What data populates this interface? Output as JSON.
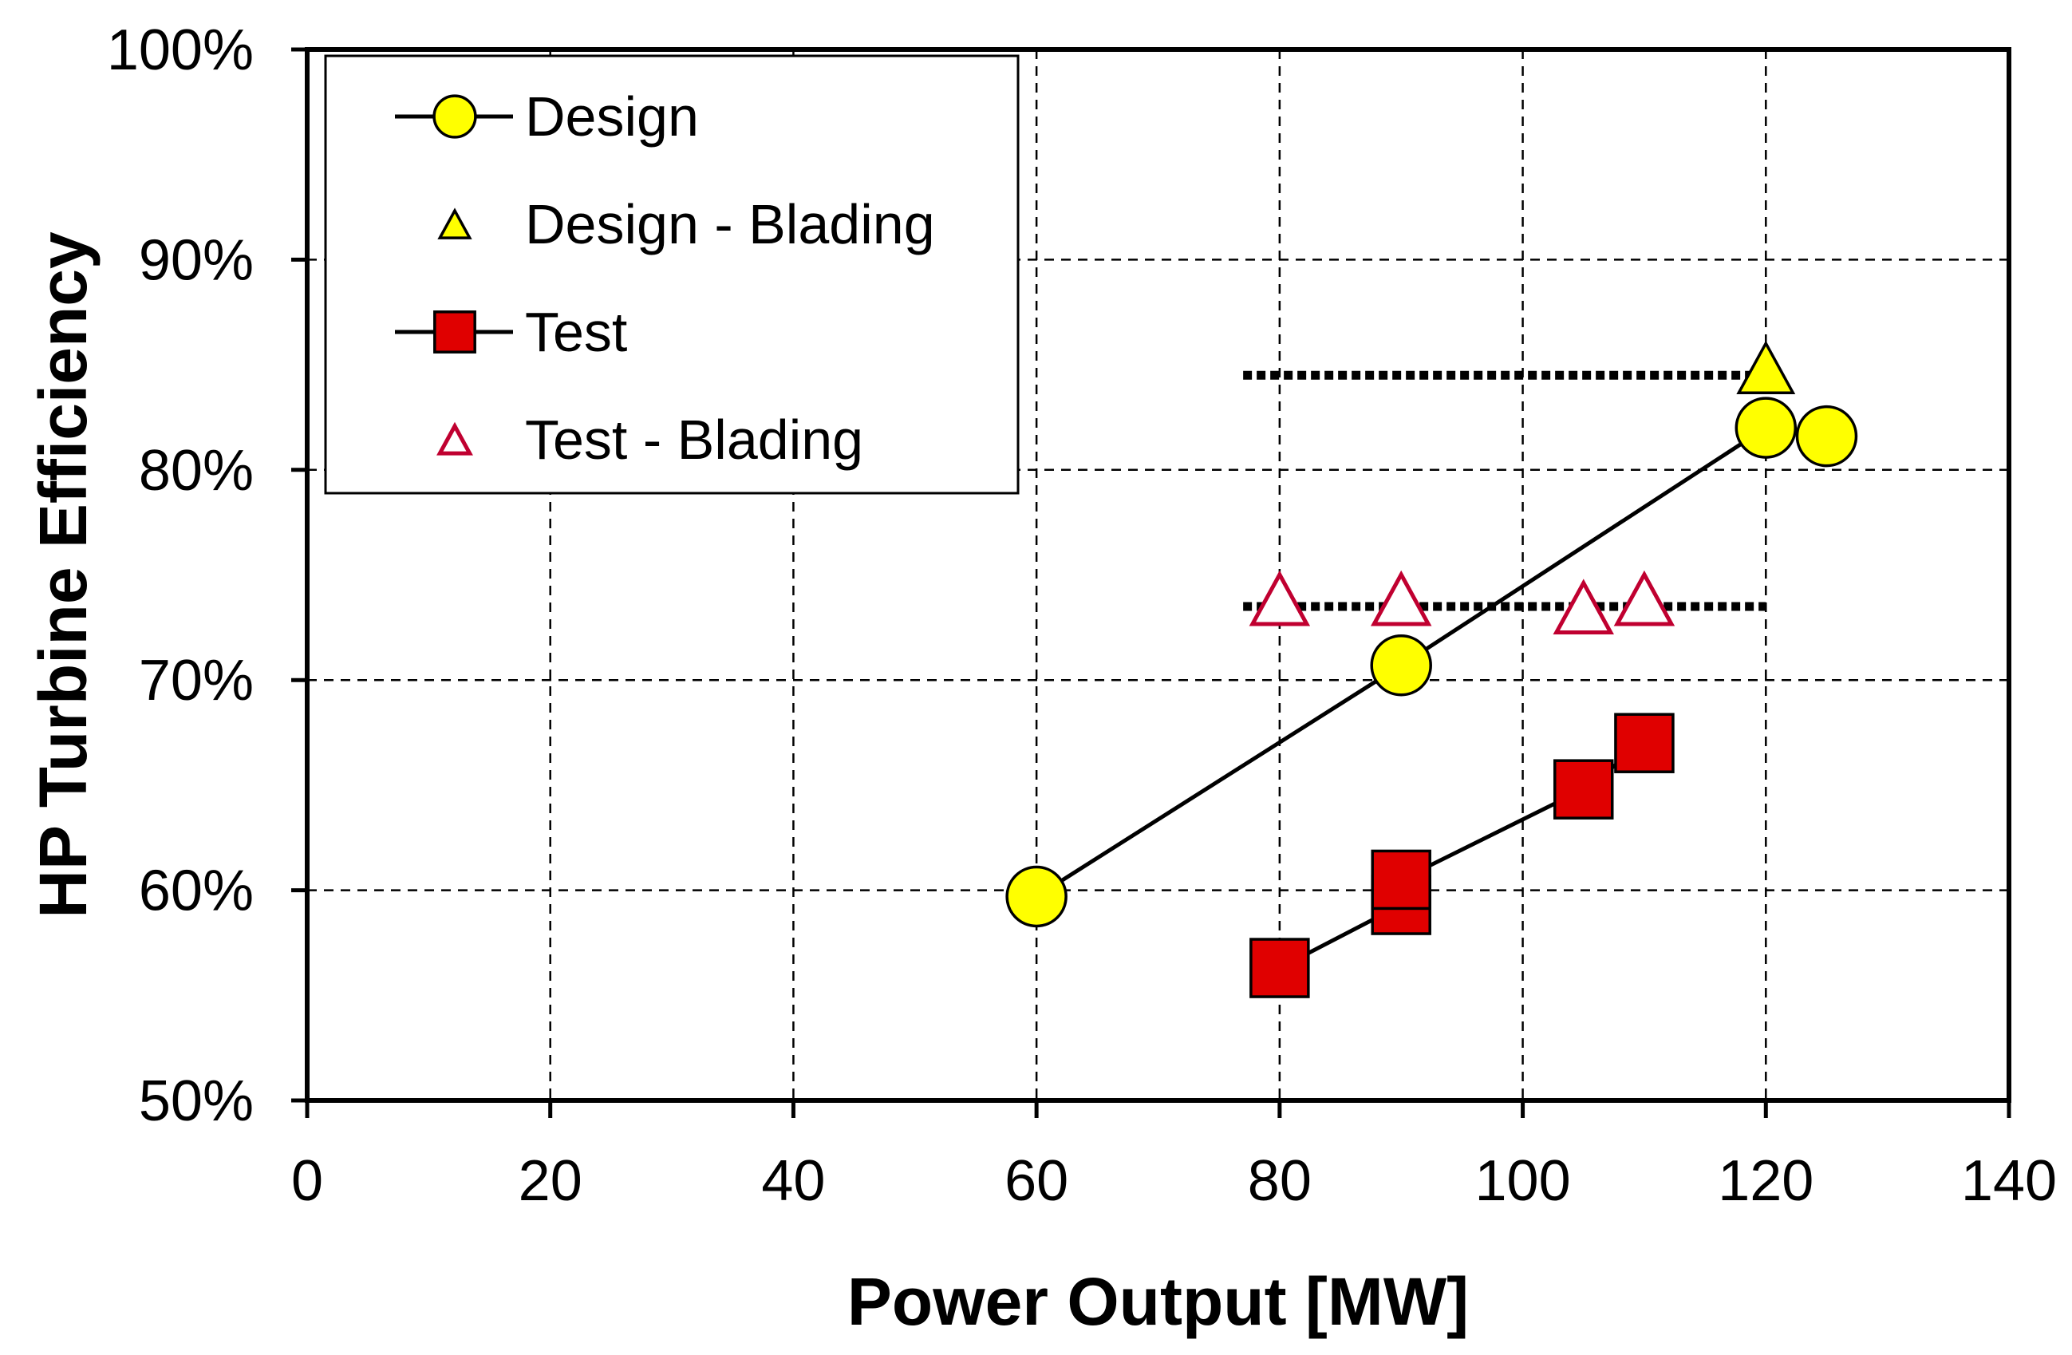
{
  "chart_data": {
    "type": "scatter",
    "xlabel": "Power Output [MW]",
    "ylabel": "HP Turbine Efficiency",
    "xlim": [
      0,
      140
    ],
    "ylim": [
      50,
      100
    ],
    "x_ticks": [
      0,
      20,
      40,
      60,
      80,
      100,
      120,
      140
    ],
    "y_ticks": [
      50,
      60,
      70,
      80,
      90,
      100
    ],
    "x_tick_labels": [
      "0",
      "20",
      "40",
      "60",
      "80",
      "100",
      "120",
      "140"
    ],
    "y_tick_labels": [
      "50%",
      "60%",
      "70%",
      "80%",
      "90%",
      "100%"
    ],
    "grid": true,
    "legend_position": "top-left",
    "series": [
      {
        "name": "Design",
        "marker": "circle",
        "connected": true,
        "color": "#ffff00",
        "edge_color": "#000000",
        "x": [
          60,
          90,
          120,
          125
        ],
        "y": [
          59.7,
          70.7,
          82.0,
          81.6
        ]
      },
      {
        "name": "Design - Blading",
        "marker": "triangle",
        "connected": false,
        "color": "#ffff00",
        "edge_color": "#000000",
        "x": [
          120
        ],
        "y": [
          84.5
        ]
      },
      {
        "name": "Test",
        "marker": "square",
        "connected": true,
        "color": "#e00000",
        "edge_color": "#000000",
        "x": [
          80,
          90,
          90,
          105,
          110
        ],
        "y": [
          56.3,
          59.3,
          60.5,
          64.8,
          67.0
        ]
      },
      {
        "name": "Test - Blading",
        "marker": "triangle-open",
        "connected": false,
        "color": "#ffffff",
        "edge_color": "#c00030",
        "x": [
          80,
          90,
          105,
          110
        ],
        "y": [
          73.5,
          73.5,
          73.1,
          73.5
        ]
      }
    ],
    "reference_lines": [
      {
        "style": "dotted",
        "x_start": 77,
        "x_end": 120,
        "y": 84.5
      },
      {
        "style": "dotted",
        "x_start": 77,
        "x_end": 120,
        "y": 73.5
      }
    ]
  }
}
